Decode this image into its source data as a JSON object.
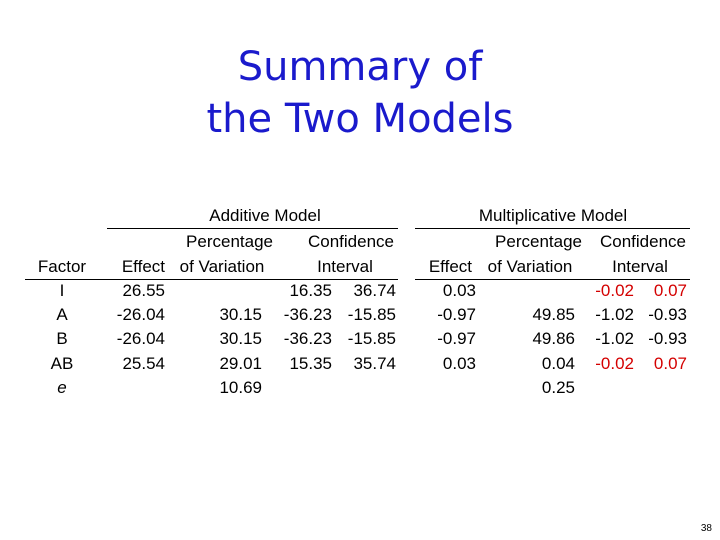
{
  "title": [
    "Summary of",
    "the Two Models"
  ],
  "table": {
    "factor_header": "Factor",
    "groups": [
      {
        "name": "Additive Model",
        "headers": [
          [
            "Percentage",
            "Confidence"
          ],
          [
            "Effect",
            "of Variation",
            "Interval"
          ]
        ]
      },
      {
        "name": "Multiplicative Model",
        "headers": [
          [
            "Percentage",
            "Confidence"
          ],
          [
            "Effect",
            "of Variation",
            "Interval"
          ]
        ]
      }
    ],
    "rows": [
      {
        "factor": "I",
        "additive": [
          "26.55",
          null,
          "16.35",
          "36.74"
        ],
        "multiplicative": [
          "0.03",
          null,
          "-0.02",
          "0.07"
        ],
        "multiplicative_ci_color": "#d40000"
      },
      {
        "factor": "A",
        "additive": [
          "-26.04",
          "30.15",
          "-36.23",
          "-15.85"
        ],
        "multiplicative": [
          "-0.97",
          "49.85",
          "-1.02",
          "-0.93"
        ]
      },
      {
        "factor": "B",
        "additive": [
          "-26.04",
          "30.15",
          "-36.23",
          "-15.85"
        ],
        "multiplicative": [
          "-0.97",
          "49.86",
          "-1.02",
          "-0.93"
        ]
      },
      {
        "factor": "AB",
        "additive": [
          "25.54",
          "29.01",
          "15.35",
          "35.74"
        ],
        "multiplicative": [
          "0.03",
          "0.04",
          "-0.02",
          "0.07"
        ],
        "multiplicative_ci_color": "#d40000"
      },
      {
        "factor": "e",
        "factor_italic": true,
        "additive": [
          null,
          "10.69",
          null,
          null
        ],
        "multiplicative": [
          null,
          "0.25",
          null,
          null
        ]
      }
    ]
  },
  "page_number": "38"
}
